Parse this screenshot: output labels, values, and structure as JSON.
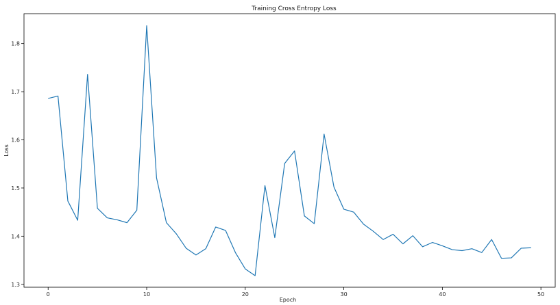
{
  "chart_data": {
    "type": "line",
    "title": "Training Cross Entropy Loss",
    "xlabel": "Epoch",
    "ylabel": "Loss",
    "xlim": [
      -2.45,
      51.45
    ],
    "ylim": [
      1.294,
      1.862
    ],
    "xticks": [
      0,
      10,
      20,
      30,
      40,
      50
    ],
    "yticks": [
      1.3,
      1.4,
      1.5,
      1.6,
      1.7,
      1.8
    ],
    "ytick_labels": [
      "1.3",
      "1.4",
      "1.5",
      "1.6",
      "1.7",
      "1.8"
    ],
    "grid": false,
    "color": "#1f77b4",
    "series": [
      {
        "x": [
          0,
          1,
          2,
          3,
          4,
          5,
          6,
          7,
          8,
          9,
          10,
          11,
          12,
          13,
          14,
          15,
          16,
          17,
          18,
          19,
          20,
          21,
          22,
          23,
          24,
          25,
          26,
          27,
          28,
          29,
          30,
          31,
          32,
          33,
          34,
          35,
          36,
          37,
          38,
          39,
          40,
          41,
          42,
          43,
          44,
          45,
          46,
          47,
          48,
          49
        ],
        "values": [
          1.686,
          1.691,
          1.473,
          1.433,
          1.736,
          1.458,
          1.438,
          1.434,
          1.428,
          1.454,
          1.837,
          1.521,
          1.428,
          1.405,
          1.375,
          1.361,
          1.374,
          1.419,
          1.412,
          1.366,
          1.332,
          1.318,
          1.505,
          1.397,
          1.551,
          1.577,
          1.442,
          1.426,
          1.612,
          1.502,
          1.456,
          1.45,
          1.425,
          1.41,
          1.393,
          1.404,
          1.384,
          1.401,
          1.378,
          1.387,
          1.38,
          1.372,
          1.37,
          1.374,
          1.366,
          1.393,
          1.354,
          1.355,
          1.375,
          1.376
        ]
      }
    ]
  }
}
